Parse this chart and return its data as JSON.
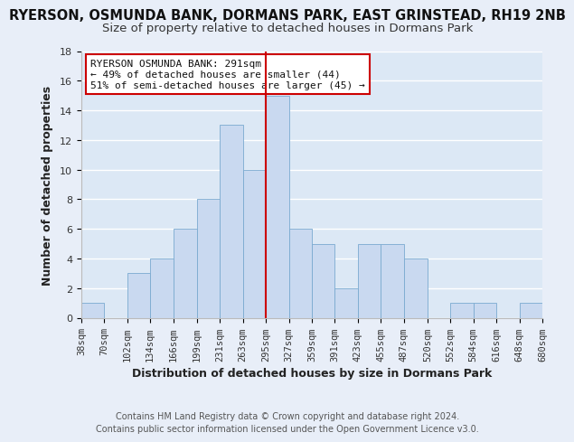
{
  "title": "RYERSON, OSMUNDA BANK, DORMANS PARK, EAST GRINSTEAD, RH19 2NB",
  "subtitle": "Size of property relative to detached houses in Dormans Park",
  "xlabel": "Distribution of detached houses by size in Dormans Park",
  "ylabel": "Number of detached properties",
  "footer_line1": "Contains HM Land Registry data © Crown copyright and database right 2024.",
  "footer_line2": "Contains public sector information licensed under the Open Government Licence v3.0.",
  "bin_edges": [
    38,
    70,
    102,
    134,
    166,
    199,
    231,
    263,
    295,
    327,
    359,
    391,
    423,
    455,
    487,
    520,
    552,
    584,
    616,
    648,
    680
  ],
  "bin_labels": [
    "38sqm",
    "70sqm",
    "102sqm",
    "134sqm",
    "166sqm",
    "199sqm",
    "231sqm",
    "263sqm",
    "295sqm",
    "327sqm",
    "359sqm",
    "391sqm",
    "423sqm",
    "455sqm",
    "487sqm",
    "520sqm",
    "552sqm",
    "584sqm",
    "616sqm",
    "648sqm",
    "680sqm"
  ],
  "counts": [
    1,
    0,
    3,
    4,
    6,
    8,
    13,
    10,
    15,
    6,
    5,
    2,
    5,
    5,
    4,
    0,
    1,
    1,
    0,
    1
  ],
  "bar_color": "#c9d9f0",
  "bar_edge_color": "#7aaad0",
  "reference_line_x": 295,
  "reference_line_color": "#cc0000",
  "annotation_title": "RYERSON OSMUNDA BANK: 291sqm",
  "annotation_line1": "← 49% of detached houses are smaller (44)",
  "annotation_line2": "51% of semi-detached houses are larger (45) →",
  "annotation_box_facecolor": "#ffffff",
  "annotation_box_edgecolor": "#cc0000",
  "ylim": [
    0,
    18
  ],
  "yticks": [
    0,
    2,
    4,
    6,
    8,
    10,
    12,
    14,
    16,
    18
  ],
  "background_color": "#e8eef8",
  "plot_background_color": "#dce8f5",
  "grid_color": "#ffffff",
  "title_fontsize": 10.5,
  "subtitle_fontsize": 9.5,
  "label_fontsize": 9,
  "tick_fontsize": 7.5,
  "annotation_fontsize": 8,
  "footer_fontsize": 7
}
